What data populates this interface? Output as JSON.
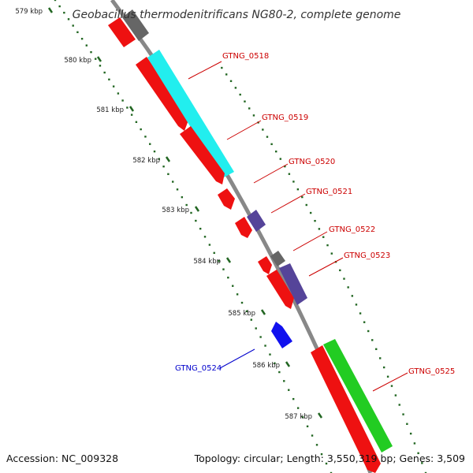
{
  "title": "Geobacillus thermodenitrificans NG80-2, complete genome",
  "footer": {
    "accession": "Accession: NC_009328",
    "summary": "Topology: circular; Length: 3,550,319 bp; Genes: 3,509"
  },
  "colors": {
    "backbone": "#888888",
    "forward_cds": "#ee1111",
    "other_feature": "#666666",
    "rna": "#22cc22",
    "cyan_feature": "#22eeee",
    "purple_feature": "#554499",
    "blue_feature": "#1111ee",
    "label_forward": "#cc0000",
    "label_reverse": "#0000cc",
    "tick": "#226622"
  },
  "ticks": [
    {
      "label": "579 kbp",
      "kb": 579
    },
    {
      "label": "580 kbp",
      "kb": 580
    },
    {
      "label": "581 kbp",
      "kb": 581
    },
    {
      "label": "582 kbp",
      "kb": 582
    },
    {
      "label": "583 kbp",
      "kb": 583
    },
    {
      "label": "584 kbp",
      "kb": 584
    },
    {
      "label": "585 kbp",
      "kb": 585
    },
    {
      "label": "586 kbp",
      "kb": 586
    },
    {
      "label": "587 kbp",
      "kb": 587
    }
  ],
  "genes": [
    {
      "name": "GTNG_0518",
      "strand": "forward"
    },
    {
      "name": "GTNG_0519",
      "strand": "forward"
    },
    {
      "name": "GTNG_0520",
      "strand": "forward"
    },
    {
      "name": "GTNG_0521",
      "strand": "forward"
    },
    {
      "name": "GTNG_0522",
      "strand": "forward"
    },
    {
      "name": "GTNG_0523",
      "strand": "forward"
    },
    {
      "name": "GTNG_0524",
      "strand": "reverse"
    },
    {
      "name": "GTNG_0525",
      "strand": "forward"
    }
  ]
}
